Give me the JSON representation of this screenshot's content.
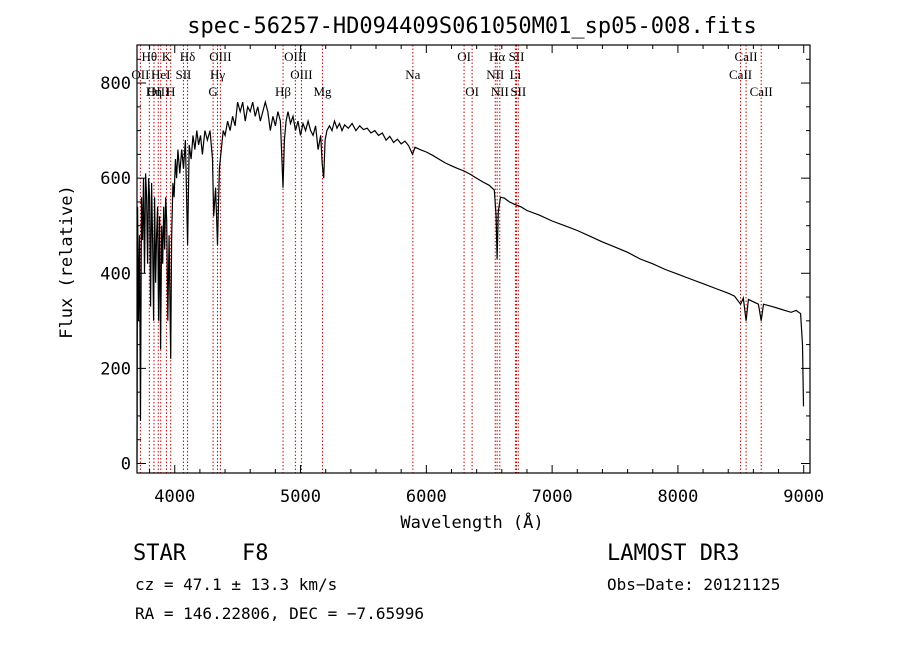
{
  "chart_data": {
    "type": "line",
    "title": "spec-56257-HD094409S061050M01_sp05-008.fits",
    "xlabel": "Wavelength (Å)",
    "ylabel": "Flux (relative)",
    "xlim": [
      3700,
      9050
    ],
    "ylim": [
      -20,
      880
    ],
    "x_ticks": [
      4000,
      5000,
      6000,
      7000,
      8000,
      9000
    ],
    "y_ticks": [
      0,
      200,
      400,
      600,
      800
    ],
    "x_tick_labels": [
      "4000",
      "5000",
      "6000",
      "7000",
      "8000",
      "9000"
    ],
    "y_tick_labels": [
      "0",
      "200",
      "400",
      "600",
      "800"
    ],
    "series": [
      {
        "name": "flux",
        "points": [
          [
            3700,
            0
          ],
          [
            3705,
            540
          ],
          [
            3712,
            300
          ],
          [
            3720,
            480
          ],
          [
            3728,
            90
          ],
          [
            3736,
            560
          ],
          [
            3744,
            470
          ],
          [
            3752,
            600
          ],
          [
            3760,
            400
          ],
          [
            3768,
            610
          ],
          [
            3776,
            560
          ],
          [
            3784,
            420
          ],
          [
            3792,
            600
          ],
          [
            3800,
            560
          ],
          [
            3808,
            330
          ],
          [
            3816,
            590
          ],
          [
            3824,
            470
          ],
          [
            3832,
            300
          ],
          [
            3840,
            560
          ],
          [
            3848,
            380
          ],
          [
            3856,
            480
          ],
          [
            3864,
            540
          ],
          [
            3872,
            300
          ],
          [
            3880,
            520
          ],
          [
            3888,
            240
          ],
          [
            3896,
            500
          ],
          [
            3904,
            420
          ],
          [
            3912,
            540
          ],
          [
            3920,
            450
          ],
          [
            3928,
            560
          ],
          [
            3936,
            510
          ],
          [
            3945,
            300
          ],
          [
            3955,
            480
          ],
          [
            3968,
            220
          ],
          [
            3975,
            470
          ],
          [
            3985,
            590
          ],
          [
            3995,
            560
          ],
          [
            4005,
            640
          ],
          [
            4015,
            600
          ],
          [
            4025,
            660
          ],
          [
            4040,
            610
          ],
          [
            4055,
            660
          ],
          [
            4070,
            620
          ],
          [
            4085,
            680
          ],
          [
            4102,
            460
          ],
          [
            4115,
            670
          ],
          [
            4130,
            640
          ],
          [
            4145,
            690
          ],
          [
            4160,
            660
          ],
          [
            4175,
            700
          ],
          [
            4190,
            670
          ],
          [
            4205,
            690
          ],
          [
            4220,
            650
          ],
          [
            4240,
            700
          ],
          [
            4260,
            680
          ],
          [
            4280,
            700
          ],
          [
            4300,
            640
          ],
          [
            4310,
            520
          ],
          [
            4325,
            580
          ],
          [
            4340,
            460
          ],
          [
            4355,
            620
          ],
          [
            4370,
            660
          ],
          [
            4385,
            700
          ],
          [
            4400,
            690
          ],
          [
            4420,
            720
          ],
          [
            4440,
            700
          ],
          [
            4460,
            730
          ],
          [
            4480,
            710
          ],
          [
            4500,
            760
          ],
          [
            4520,
            740
          ],
          [
            4540,
            760
          ],
          [
            4560,
            720
          ],
          [
            4580,
            750
          ],
          [
            4600,
            740
          ],
          [
            4620,
            760
          ],
          [
            4640,
            730
          ],
          [
            4660,
            750
          ],
          [
            4680,
            720
          ],
          [
            4700,
            740
          ],
          [
            4720,
            760
          ],
          [
            4740,
            740
          ],
          [
            4760,
            700
          ],
          [
            4780,
            730
          ],
          [
            4800,
            710
          ],
          [
            4820,
            740
          ],
          [
            4840,
            720
          ],
          [
            4850,
            650
          ],
          [
            4861,
            580
          ],
          [
            4872,
            680
          ],
          [
            4885,
            720
          ],
          [
            4900,
            740
          ],
          [
            4920,
            715
          ],
          [
            4940,
            730
          ],
          [
            4960,
            700
          ],
          [
            4980,
            720
          ],
          [
            5000,
            690
          ],
          [
            5020,
            715
          ],
          [
            5040,
            700
          ],
          [
            5060,
            720
          ],
          [
            5080,
            700
          ],
          [
            5100,
            690
          ],
          [
            5120,
            710
          ],
          [
            5140,
            660
          ],
          [
            5160,
            690
          ],
          [
            5172,
            630
          ],
          [
            5184,
            600
          ],
          [
            5195,
            680
          ],
          [
            5210,
            700
          ],
          [
            5230,
            710
          ],
          [
            5250,
            700
          ],
          [
            5270,
            720
          ],
          [
            5290,
            705
          ],
          [
            5310,
            715
          ],
          [
            5330,
            700
          ],
          [
            5350,
            712
          ],
          [
            5380,
            705
          ],
          [
            5410,
            715
          ],
          [
            5440,
            700
          ],
          [
            5470,
            710
          ],
          [
            5500,
            702
          ],
          [
            5530,
            705
          ],
          [
            5560,
            695
          ],
          [
            5590,
            700
          ],
          [
            5620,
            690
          ],
          [
            5650,
            695
          ],
          [
            5680,
            680
          ],
          [
            5710,
            688
          ],
          [
            5740,
            675
          ],
          [
            5770,
            682
          ],
          [
            5800,
            672
          ],
          [
            5830,
            678
          ],
          [
            5860,
            668
          ],
          [
            5890,
            650
          ],
          [
            5910,
            665
          ],
          [
            5950,
            660
          ],
          [
            6000,
            655
          ],
          [
            6050,
            648
          ],
          [
            6100,
            640
          ],
          [
            6150,
            632
          ],
          [
            6200,
            626
          ],
          [
            6250,
            620
          ],
          [
            6300,
            615
          ],
          [
            6350,
            608
          ],
          [
            6400,
            600
          ],
          [
            6450,
            592
          ],
          [
            6500,
            585
          ],
          [
            6540,
            575
          ],
          [
            6555,
            520
          ],
          [
            6563,
            430
          ],
          [
            6572,
            530
          ],
          [
            6590,
            560
          ],
          [
            6620,
            558
          ],
          [
            6660,
            550
          ],
          [
            6700,
            545
          ],
          [
            6750,
            540
          ],
          [
            6800,
            532
          ],
          [
            6900,
            522
          ],
          [
            7000,
            510
          ],
          [
            7100,
            500
          ],
          [
            7200,
            490
          ],
          [
            7300,
            478
          ],
          [
            7400,
            466
          ],
          [
            7500,
            455
          ],
          [
            7600,
            444
          ],
          [
            7700,
            430
          ],
          [
            7800,
            420
          ],
          [
            7900,
            408
          ],
          [
            8000,
            398
          ],
          [
            8100,
            388
          ],
          [
            8200,
            378
          ],
          [
            8300,
            368
          ],
          [
            8400,
            358
          ],
          [
            8450,
            352
          ],
          [
            8498,
            335
          ],
          [
            8520,
            348
          ],
          [
            8542,
            300
          ],
          [
            8560,
            345
          ],
          [
            8600,
            340
          ],
          [
            8640,
            335
          ],
          [
            8662,
            300
          ],
          [
            8680,
            335
          ],
          [
            8750,
            330
          ],
          [
            8800,
            326
          ],
          [
            8850,
            322
          ],
          [
            8900,
            318
          ],
          [
            8940,
            322
          ],
          [
            8975,
            315
          ],
          [
            8990,
            250
          ],
          [
            8998,
            120
          ]
        ]
      }
    ],
    "lines": [
      {
        "name": "Hθ",
        "wavelength": 3798,
        "row": 0
      },
      {
        "name": "OII",
        "wavelength": 3727,
        "row": 1
      },
      {
        "name": "OIII",
        "wavelength": 3869,
        "row": 2
      },
      {
        "name": "K",
        "wavelength": 3934,
        "row": 0
      },
      {
        "name": "HeI",
        "wavelength": 3889,
        "row": 1
      },
      {
        "name": "Hη",
        "wavelength": 3835,
        "row": 2
      },
      {
        "name": "SII",
        "wavelength": 4069,
        "row": 1
      },
      {
        "name": "H",
        "wavelength": 3968,
        "row": 2
      },
      {
        "name": "Hδ",
        "wavelength": 4102,
        "row": 0
      },
      {
        "name": "OIII",
        "wavelength": 4363,
        "row": 0
      },
      {
        "name": "Hγ",
        "wavelength": 4340,
        "row": 1
      },
      {
        "name": "G",
        "wavelength": 4305,
        "row": 2
      },
      {
        "name": "OIII",
        "wavelength": 4959,
        "row": 0
      },
      {
        "name": "OIII",
        "wavelength": 5007,
        "row": 1
      },
      {
        "name": "Hβ",
        "wavelength": 4861,
        "row": 2
      },
      {
        "name": "Mg",
        "wavelength": 5175,
        "row": 2
      },
      {
        "name": "Na",
        "wavelength": 5893,
        "row": 1
      },
      {
        "name": "OI",
        "wavelength": 6300,
        "row": 0
      },
      {
        "name": "OI",
        "wavelength": 6364,
        "row": 2
      },
      {
        "name": "Hα",
        "wavelength": 6563,
        "row": 0
      },
      {
        "name": "NII",
        "wavelength": 6548,
        "row": 1
      },
      {
        "name": "NII",
        "wavelength": 6584,
        "row": 2
      },
      {
        "name": "SII",
        "wavelength": 6717,
        "row": 0
      },
      {
        "name": "Li",
        "wavelength": 6708,
        "row": 1
      },
      {
        "name": "SII",
        "wavelength": 6731,
        "row": 2
      },
      {
        "name": "CaII",
        "wavelength": 8542,
        "row": 0
      },
      {
        "name": "CaII",
        "wavelength": 8498,
        "row": 1
      },
      {
        "name": "CaII",
        "wavelength": 8662,
        "row": 2
      }
    ]
  },
  "info": {
    "class": "STAR",
    "subclass": "F8",
    "cz": "cz = 47.1 ± 13.3 km/s",
    "coords": "RA = 146.22806, DEC =  −7.65996",
    "survey": "LAMOST DR3",
    "obs_date": "Obs−Date: 20121125"
  },
  "colors": {
    "line_marker": "#cc0000",
    "spectrum": "#000000"
  }
}
